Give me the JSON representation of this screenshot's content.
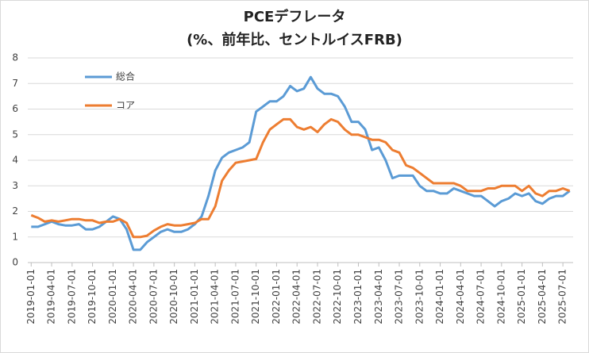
{
  "chart_data": {
    "type": "line",
    "title": "PCEデフレータ",
    "subtitle": "(%、前年比、セントルイスFRB)",
    "categories": [
      "2019-01-01",
      null,
      null,
      "2019-04-01",
      null,
      null,
      "2019-07-01",
      null,
      null,
      "2019-10-01",
      null,
      null,
      "2020-01-01",
      null,
      null,
      "2020-04-01",
      null,
      null,
      "2020-07-01",
      null,
      null,
      "2020-10-01",
      null,
      null,
      "2021-01-01",
      null,
      null,
      "2021-04-01",
      null,
      null,
      "2021-07-01",
      null,
      null,
      "2021-10-01",
      null,
      null,
      "2022-01-01",
      null,
      null,
      "2022-04-01",
      null,
      null,
      "2022-07-01",
      null,
      null,
      "2022-10-01",
      null,
      null,
      "2023-01-01",
      null,
      null,
      "2023-04-01",
      null,
      null,
      "2023-07-01",
      null,
      null,
      "2023-10-01",
      null,
      null,
      "2024-01-01",
      null,
      null,
      "2024-04-01",
      null,
      null,
      "2024-07-01",
      null,
      null,
      "2024-10-01",
      null,
      null,
      "2025-01-01",
      null,
      null,
      "2025-04-01",
      null,
      null,
      "2025-07-01",
      null
    ],
    "series": [
      {
        "name": "総合",
        "color": "#5b9bd5",
        "values": [
          1.4,
          1.4,
          1.5,
          1.6,
          1.5,
          1.45,
          1.45,
          1.5,
          1.3,
          1.3,
          1.4,
          1.6,
          1.8,
          1.7,
          1.3,
          0.5,
          0.5,
          0.8,
          1.0,
          1.2,
          1.3,
          1.2,
          1.2,
          1.3,
          1.5,
          1.8,
          2.6,
          3.6,
          4.1,
          4.3,
          4.4,
          4.5,
          4.7,
          5.9,
          6.1,
          6.3,
          6.3,
          6.5,
          6.9,
          6.7,
          6.8,
          7.25,
          6.8,
          6.6,
          6.6,
          6.5,
          6.1,
          5.5,
          5.5,
          5.2,
          4.4,
          4.5,
          4.0,
          3.3,
          3.4,
          3.4,
          3.4,
          3.0,
          2.8,
          2.8,
          2.7,
          2.7,
          2.9,
          2.8,
          2.7,
          2.6,
          2.6,
          2.4,
          2.2,
          2.4,
          2.5,
          2.7,
          2.6,
          2.7,
          2.4,
          2.3,
          2.5,
          2.6,
          2.6,
          2.8
        ]
      },
      {
        "name": "コア",
        "color": "#ed7d31",
        "values": [
          1.85,
          1.75,
          1.6,
          1.65,
          1.6,
          1.65,
          1.7,
          1.7,
          1.65,
          1.65,
          1.55,
          1.6,
          1.6,
          1.7,
          1.55,
          1.0,
          1.0,
          1.05,
          1.25,
          1.4,
          1.5,
          1.45,
          1.45,
          1.5,
          1.55,
          1.7,
          1.7,
          2.2,
          3.2,
          3.6,
          3.9,
          3.95,
          4.0,
          4.05,
          4.7,
          5.2,
          5.4,
          5.6,
          5.6,
          5.3,
          5.2,
          5.3,
          5.1,
          5.4,
          5.6,
          5.5,
          5.2,
          5.0,
          5.0,
          4.9,
          4.8,
          4.8,
          4.7,
          4.4,
          4.3,
          3.8,
          3.7,
          3.5,
          3.3,
          3.1,
          3.1,
          3.1,
          3.1,
          3.0,
          2.8,
          2.8,
          2.8,
          2.9,
          2.9,
          3.0,
          3.0,
          3.0,
          2.8,
          3.0,
          2.7,
          2.6,
          2.8,
          2.8,
          2.9,
          2.8
        ]
      }
    ],
    "ylim": [
      0,
      8
    ],
    "yticks": [
      0,
      1,
      2,
      3,
      4,
      5,
      6,
      7,
      8
    ],
    "grid": true,
    "legend": "top-left"
  }
}
